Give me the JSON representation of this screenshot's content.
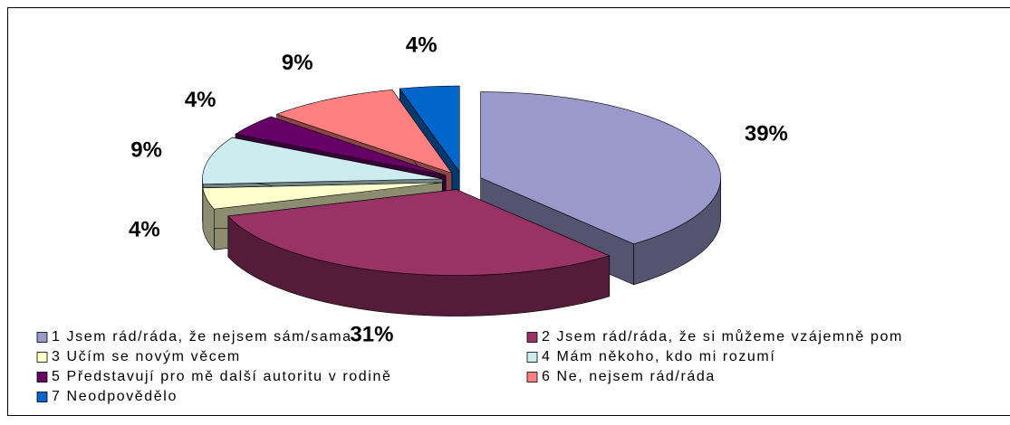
{
  "chart_data": {
    "type": "pie",
    "categories": [
      "1 Jsem rád/ráda, že nejsem sám/sama",
      "2 Jsem rád/ráda, že si můžeme vzájemně pom",
      "3 Učím se novým věcem",
      "4 Mám někoho, kdo mi rozumí",
      "5 Představují pro mě další autoritu v rodině",
      "6 Ne, nejsem rád/ráda",
      "7 Neodpovědělo"
    ],
    "values": [
      39,
      31,
      4,
      9,
      4,
      9,
      4
    ],
    "value_labels": [
      "39%",
      "31%",
      "4%",
      "9%",
      "4%",
      "9%",
      "4%"
    ],
    "colors": [
      "#9999cc",
      "#993366",
      "#ffffcc",
      "#ccecf0",
      "#660066",
      "#ff8080",
      "#0066cc"
    ],
    "legend": "bottom"
  }
}
